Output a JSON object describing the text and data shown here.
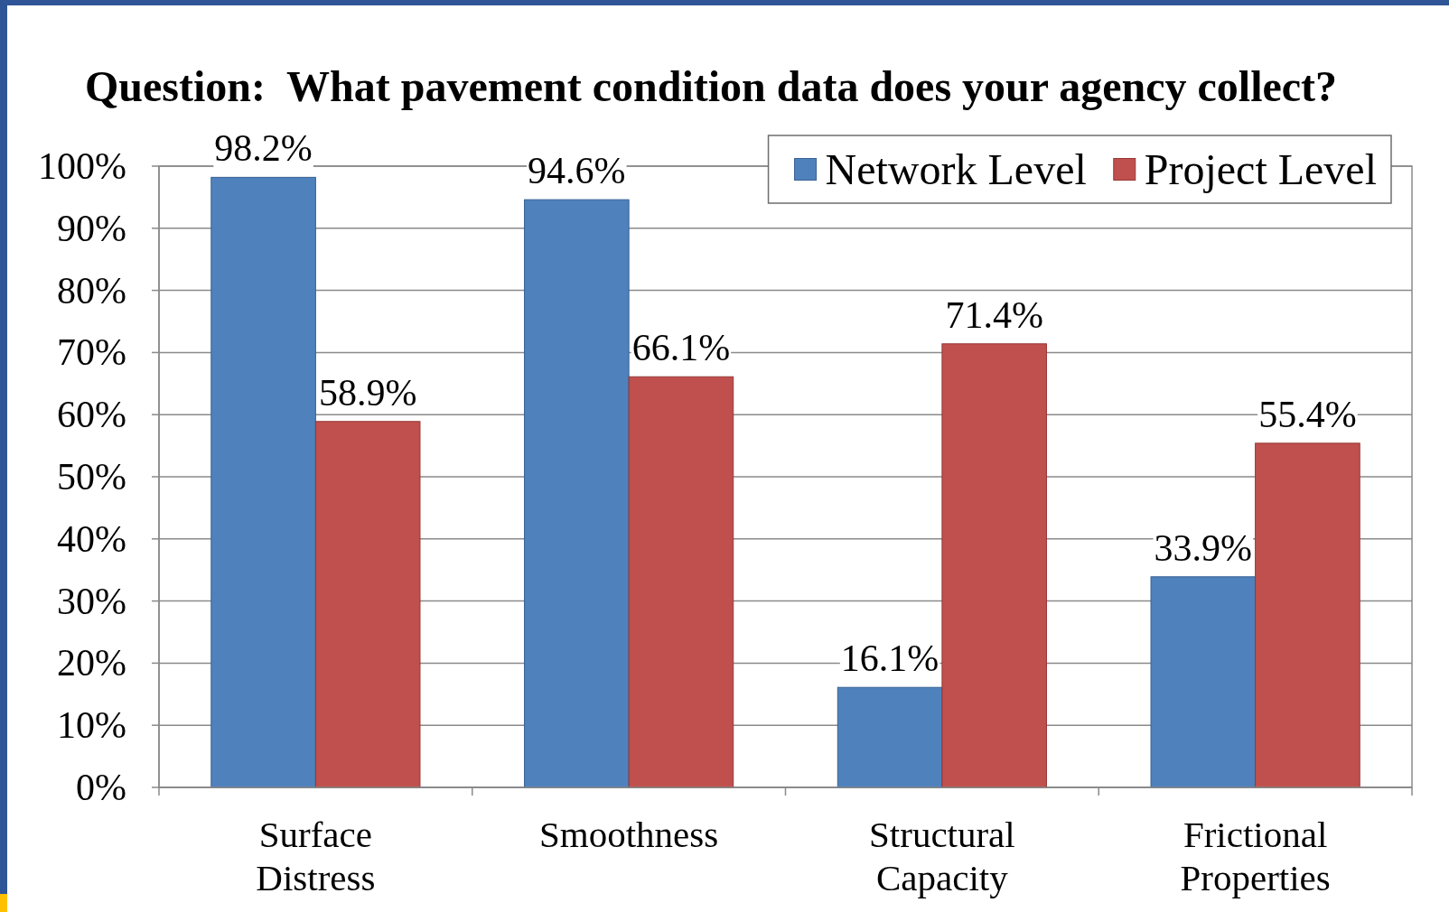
{
  "chart_data": {
    "type": "bar",
    "title": "Question:  What pavement condition data does your agency collect?",
    "categories": [
      "Surface Distress",
      "Smoothness",
      "Structural Capacity",
      "Frictional Properties"
    ],
    "series": [
      {
        "name": "Network Level",
        "color": "#4f81bd",
        "values": [
          98.2,
          94.6,
          16.1,
          33.9
        ],
        "value_labels": [
          "98.2%",
          "94.6%",
          "16.1%",
          "33.9%"
        ]
      },
      {
        "name": "Project Level",
        "color": "#c0504d",
        "values": [
          58.9,
          66.1,
          71.4,
          55.4
        ],
        "value_labels": [
          "58.9%",
          "66.1%",
          "71.4%",
          "55.4%"
        ]
      }
    ],
    "ylim": [
      0,
      100
    ],
    "yticks": [
      {
        "value": 0,
        "label": "0%"
      },
      {
        "value": 10,
        "label": "10%"
      },
      {
        "value": 20,
        "label": "20%"
      },
      {
        "value": 30,
        "label": "30%"
      },
      {
        "value": 40,
        "label": "40%"
      },
      {
        "value": 50,
        "label": "50%"
      },
      {
        "value": 60,
        "label": "60%"
      },
      {
        "value": 70,
        "label": "70%"
      },
      {
        "value": 80,
        "label": "80%"
      },
      {
        "value": 90,
        "label": "90%"
      },
      {
        "value": 100,
        "label": "100%"
      }
    ],
    "grid": "y",
    "legend": "top right"
  }
}
